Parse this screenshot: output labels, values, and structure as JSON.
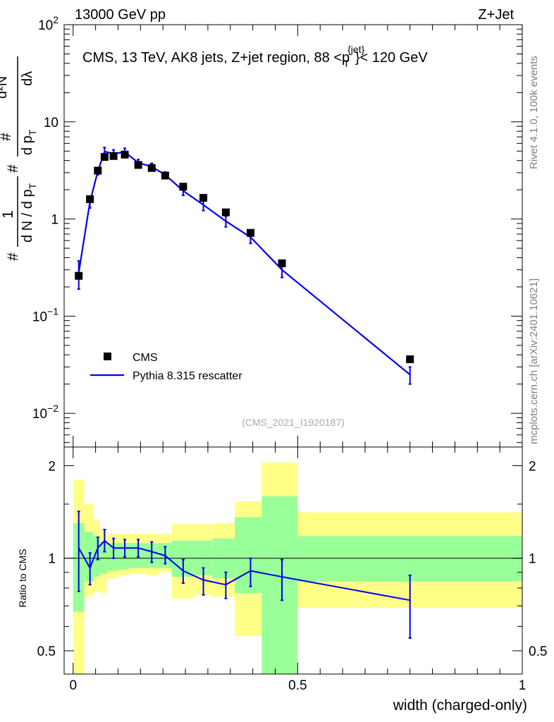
{
  "header": {
    "energy": "13000 GeV pp",
    "process": "Z+Jet"
  },
  "side_labels": {
    "rivet": "Rivet 4.1.0,  100k events",
    "mcplots": "mcplots.cern.ch [arXiv:2401.10621]"
  },
  "colors": {
    "mc_line": "#0000ee",
    "band_inner": "#99ff99",
    "band_outer": "#ffff88",
    "data_marker": "#000000"
  },
  "chart_data": [
    {
      "type": "scatter",
      "title": "CMS, 13 TeV, AK8 jets, Z+jet region, 88 <p_T^{jet}< 120 GeV",
      "title_parts": {
        "main": "CMS, 13 TeV, AK8 jets, Z+jet region, 88 <p",
        "sup": "{jet}",
        "sub": "T",
        "tail": "}< 120 GeV"
      },
      "ylabel": "1/(dN/dp_T) d²N/(dp_T dλ)",
      "ylabel_parts": {
        "hash": "#",
        "one": "1",
        "den": "d N / d p",
        "den_sub": "T",
        "num": "d²N",
        "num_den": "d p",
        "lambda": "dλ"
      },
      "yscale": "log",
      "ylim": [
        0.0045,
        100
      ],
      "yticks": [
        {
          "value": 100,
          "base": "10",
          "exp": "2"
        },
        {
          "value": 10,
          "base": "10",
          "exp": ""
        },
        {
          "value": 1,
          "base": "1",
          "exp": ""
        },
        {
          "value": 0.1,
          "base": "10",
          "exp": "−1"
        },
        {
          "value": 0.01,
          "base": "10",
          "exp": "−2"
        }
      ],
      "xlim": [
        -0.02,
        1.0
      ],
      "watermark": "(CMS_2021_I1920187)",
      "legend": {
        "placement": "bottom-left",
        "entries": [
          "CMS",
          "Pythia 8.315 rescatter"
        ]
      },
      "series": [
        {
          "name": "CMS",
          "style": "markers",
          "x": [
            0.0125,
            0.0375,
            0.055,
            0.07,
            0.09,
            0.115,
            0.145,
            0.175,
            0.205,
            0.245,
            0.29,
            0.34,
            0.395,
            0.465,
            0.75
          ],
          "y": [
            0.26,
            1.6,
            3.15,
            4.35,
            4.45,
            4.6,
            3.6,
            3.35,
            2.8,
            2.15,
            1.65,
            1.17,
            0.72,
            0.35,
            0.036
          ]
        },
        {
          "name": "Pythia 8.315 rescatter",
          "style": "line",
          "x": [
            0.0125,
            0.0375,
            0.055,
            0.07,
            0.09,
            0.115,
            0.145,
            0.175,
            0.205,
            0.245,
            0.29,
            0.34,
            0.395,
            0.465,
            0.75
          ],
          "y": [
            0.28,
            1.5,
            3.1,
            4.95,
            4.7,
            4.9,
            3.8,
            3.45,
            2.85,
            1.95,
            1.4,
            0.95,
            0.65,
            0.3,
            0.025
          ],
          "err_lo": [
            0.19,
            1.3,
            2.85,
            4.45,
            4.25,
            4.45,
            3.5,
            3.15,
            2.65,
            1.75,
            1.22,
            0.83,
            0.56,
            0.25,
            0.02
          ],
          "err_hi": [
            0.37,
            1.7,
            3.35,
            5.45,
            5.15,
            5.35,
            4.1,
            3.75,
            3.05,
            2.15,
            1.58,
            1.07,
            0.74,
            0.35,
            0.03
          ]
        }
      ]
    },
    {
      "type": "line",
      "ylabel": "Ratio to CMS",
      "xlabel": "width (charged-only)",
      "ylim": [
        0.42,
        2.3
      ],
      "xlim": [
        -0.02,
        1.0
      ],
      "yticks": [
        "0.5",
        "1",
        "2"
      ],
      "xticks": [
        "0",
        "0.5",
        "1"
      ],
      "reference_line": 1,
      "bands": {
        "edges": [
          0.0,
          0.025,
          0.045,
          0.06,
          0.075,
          0.1,
          0.125,
          0.16,
          0.19,
          0.22,
          0.27,
          0.31,
          0.36,
          0.42,
          0.5,
          1.0
        ],
        "outer_lo": [
          0.38,
          0.75,
          0.78,
          0.77,
          0.86,
          0.88,
          0.89,
          0.88,
          0.9,
          0.74,
          0.76,
          0.75,
          0.56,
          0.38,
          0.69
        ],
        "outer_hi": [
          1.8,
          1.5,
          1.33,
          1.24,
          1.2,
          1.2,
          1.2,
          1.2,
          1.2,
          1.29,
          1.29,
          1.3,
          1.53,
          2.05,
          1.41
        ],
        "inner_lo": [
          0.67,
          0.84,
          0.87,
          0.89,
          0.91,
          0.92,
          0.93,
          0.93,
          0.93,
          0.87,
          0.88,
          0.86,
          0.77,
          0.42,
          0.84
        ],
        "inner_hi": [
          1.3,
          1.22,
          1.18,
          1.13,
          1.12,
          1.12,
          1.12,
          1.12,
          1.12,
          1.14,
          1.14,
          1.16,
          1.36,
          1.59,
          1.18
        ]
      },
      "series": [
        {
          "name": "Pythia 8.315 rescatter",
          "x": [
            0.0125,
            0.0375,
            0.055,
            0.07,
            0.09,
            0.115,
            0.145,
            0.175,
            0.205,
            0.245,
            0.29,
            0.34,
            0.395,
            0.465,
            0.75
          ],
          "y": [
            1.08,
            0.93,
            1.08,
            1.14,
            1.08,
            1.08,
            1.08,
            1.05,
            1.02,
            0.91,
            0.85,
            0.82,
            0.91,
            0.87,
            0.73
          ],
          "err_lo": [
            0.78,
            0.82,
            0.99,
            1.05,
            1.0,
            1.01,
            1.01,
            0.97,
            0.96,
            0.83,
            0.76,
            0.74,
            0.81,
            0.73,
            0.55
          ],
          "err_hi": [
            1.42,
            1.04,
            1.17,
            1.24,
            1.16,
            1.15,
            1.15,
            1.13,
            1.09,
            0.99,
            0.93,
            0.9,
            1.0,
            0.99,
            0.88
          ]
        }
      ]
    }
  ]
}
